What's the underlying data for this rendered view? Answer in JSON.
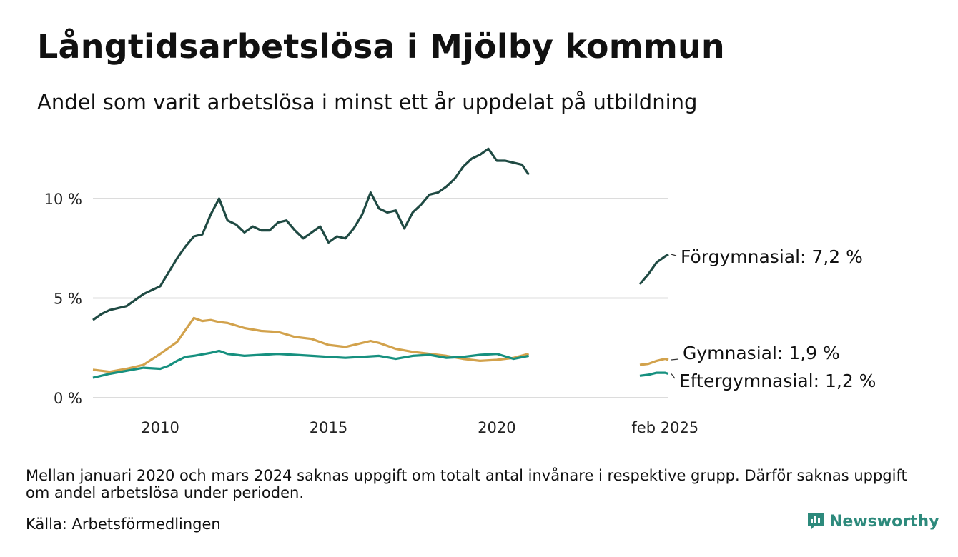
{
  "title": "Långtidsarbetslösa i Mjölby kommun",
  "subtitle": "Andel som varit arbetslösa i minst ett år uppdelat på utbildning",
  "note": "Mellan januari 2020 och mars 2024 saknas uppgift om totalt antal invånare i respektive grupp. Därför saknas uppgift om andel arbetslösa under perioden.",
  "source": "Källa: Arbetsförmedlingen",
  "brand": {
    "name": "Newsworthy",
    "color": "#2d8a7c",
    "icon": "bar-chart-icon"
  },
  "chart_data": {
    "type": "line",
    "x_ticks": [
      "2010",
      "2015",
      "2020",
      "feb 2025"
    ],
    "y_ticks": [
      "0 %",
      "5 %",
      "10 %"
    ],
    "ylim": [
      0,
      13
    ],
    "grid": true,
    "colors": {
      "forgymnasial": "#1f4a43",
      "gymnasial": "#d2a24c",
      "eftergymnasial": "#16907f"
    },
    "end_labels": {
      "forgymnasial": "Förgymnasial: 7,2 %",
      "gymnasial": "Gymnasial: 1,9 %",
      "eftergymnasial": "Eftergymnasial: 1,2 %"
    },
    "series": [
      {
        "key": "forgymnasial",
        "segments": [
          [
            [
              2008.0,
              3.9
            ],
            [
              2008.25,
              4.2
            ],
            [
              2008.5,
              4.4
            ],
            [
              2008.75,
              4.5
            ],
            [
              2009.0,
              4.6
            ],
            [
              2009.25,
              4.9
            ],
            [
              2009.5,
              5.2
            ],
            [
              2009.75,
              5.4
            ],
            [
              2010.0,
              5.6
            ],
            [
              2010.25,
              6.3
            ],
            [
              2010.5,
              7.0
            ],
            [
              2010.75,
              7.6
            ],
            [
              2011.0,
              8.1
            ],
            [
              2011.25,
              8.2
            ],
            [
              2011.5,
              9.2
            ],
            [
              2011.75,
              10.0
            ],
            [
              2012.0,
              8.9
            ],
            [
              2012.25,
              8.7
            ],
            [
              2012.5,
              8.3
            ],
            [
              2012.75,
              8.6
            ],
            [
              2013.0,
              8.4
            ],
            [
              2013.25,
              8.4
            ],
            [
              2013.5,
              8.8
            ],
            [
              2013.75,
              8.9
            ],
            [
              2014.0,
              8.4
            ],
            [
              2014.25,
              8.0
            ],
            [
              2014.5,
              8.3
            ],
            [
              2014.75,
              8.6
            ],
            [
              2015.0,
              7.8
            ],
            [
              2015.25,
              8.1
            ],
            [
              2015.5,
              8.0
            ],
            [
              2015.75,
              8.5
            ],
            [
              2016.0,
              9.2
            ],
            [
              2016.25,
              10.3
            ],
            [
              2016.5,
              9.5
            ],
            [
              2016.75,
              9.3
            ],
            [
              2017.0,
              9.4
            ],
            [
              2017.25,
              8.5
            ],
            [
              2017.5,
              9.3
            ],
            [
              2017.75,
              9.7
            ],
            [
              2018.0,
              10.2
            ],
            [
              2018.25,
              10.3
            ],
            [
              2018.5,
              10.6
            ],
            [
              2018.75,
              11.0
            ],
            [
              2019.0,
              11.6
            ],
            [
              2019.25,
              12.0
            ],
            [
              2019.5,
              12.2
            ],
            [
              2019.75,
              12.5
            ],
            [
              2020.0,
              11.9
            ],
            [
              2020.25,
              11.9
            ],
            [
              2020.5,
              11.8
            ],
            [
              2020.75,
              11.7
            ],
            [
              2020.95,
              11.2
            ]
          ],
          [
            [
              2024.25,
              5.7
            ],
            [
              2024.5,
              6.2
            ],
            [
              2024.75,
              6.8
            ],
            [
              2025.0,
              7.1
            ],
            [
              2025.1,
              7.2
            ]
          ]
        ]
      },
      {
        "key": "gymnasial",
        "segments": [
          [
            [
              2008.0,
              1.4
            ],
            [
              2008.5,
              1.3
            ],
            [
              2009.0,
              1.45
            ],
            [
              2009.5,
              1.65
            ],
            [
              2010.0,
              2.2
            ],
            [
              2010.5,
              2.8
            ],
            [
              2010.75,
              3.4
            ],
            [
              2011.0,
              4.0
            ],
            [
              2011.25,
              3.85
            ],
            [
              2011.5,
              3.9
            ],
            [
              2011.75,
              3.8
            ],
            [
              2012.0,
              3.75
            ],
            [
              2012.5,
              3.5
            ],
            [
              2013.0,
              3.35
            ],
            [
              2013.5,
              3.3
            ],
            [
              2014.0,
              3.05
            ],
            [
              2014.5,
              2.95
            ],
            [
              2015.0,
              2.65
            ],
            [
              2015.5,
              2.55
            ],
            [
              2016.0,
              2.75
            ],
            [
              2016.25,
              2.85
            ],
            [
              2016.5,
              2.75
            ],
            [
              2017.0,
              2.45
            ],
            [
              2017.5,
              2.3
            ],
            [
              2018.0,
              2.2
            ],
            [
              2018.5,
              2.1
            ],
            [
              2019.0,
              1.95
            ],
            [
              2019.5,
              1.85
            ],
            [
              2020.0,
              1.9
            ],
            [
              2020.5,
              2.0
            ],
            [
              2020.95,
              2.2
            ]
          ],
          [
            [
              2024.25,
              1.65
            ],
            [
              2024.5,
              1.7
            ],
            [
              2024.75,
              1.85
            ],
            [
              2025.0,
              1.95
            ],
            [
              2025.1,
              1.9
            ]
          ]
        ]
      },
      {
        "key": "eftergymnasial",
        "segments": [
          [
            [
              2008.0,
              1.0
            ],
            [
              2008.5,
              1.2
            ],
            [
              2009.0,
              1.35
            ],
            [
              2009.5,
              1.5
            ],
            [
              2010.0,
              1.45
            ],
            [
              2010.25,
              1.6
            ],
            [
              2010.5,
              1.85
            ],
            [
              2010.75,
              2.05
            ],
            [
              2011.0,
              2.1
            ],
            [
              2011.5,
              2.25
            ],
            [
              2011.75,
              2.35
            ],
            [
              2012.0,
              2.2
            ],
            [
              2012.5,
              2.1
            ],
            [
              2013.0,
              2.15
            ],
            [
              2013.5,
              2.2
            ],
            [
              2014.0,
              2.15
            ],
            [
              2014.5,
              2.1
            ],
            [
              2015.0,
              2.05
            ],
            [
              2015.5,
              2.0
            ],
            [
              2016.0,
              2.05
            ],
            [
              2016.5,
              2.1
            ],
            [
              2017.0,
              1.95
            ],
            [
              2017.5,
              2.1
            ],
            [
              2018.0,
              2.15
            ],
            [
              2018.5,
              2.0
            ],
            [
              2019.0,
              2.05
            ],
            [
              2019.5,
              2.15
            ],
            [
              2020.0,
              2.2
            ],
            [
              2020.5,
              1.95
            ],
            [
              2020.95,
              2.1
            ]
          ],
          [
            [
              2024.25,
              1.1
            ],
            [
              2024.5,
              1.15
            ],
            [
              2024.75,
              1.25
            ],
            [
              2025.0,
              1.25
            ],
            [
              2025.1,
              1.2
            ]
          ]
        ]
      }
    ]
  }
}
